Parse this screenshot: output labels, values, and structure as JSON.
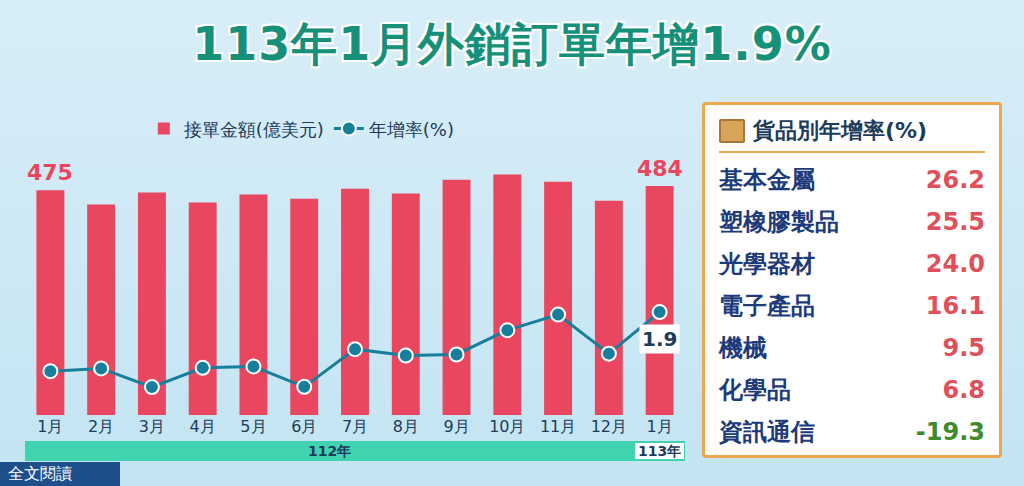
{
  "title": "113年1月外銷訂單年增1.9%",
  "chart_data": {
    "type": "bar",
    "categories": [
      "1月",
      "2月",
      "3月",
      "4月",
      "5月",
      "6月",
      "7月",
      "8月",
      "9月",
      "10月",
      "11月",
      "12月",
      "1月"
    ],
    "x_groups": [
      {
        "label": "112年",
        "count": 12
      },
      {
        "label": "113年",
        "count": 1
      }
    ],
    "series": [
      {
        "name": "接單金額(億美元)",
        "type": "bar",
        "color": "#e8475f",
        "values": [
          475,
          445,
          470,
          449,
          466,
          457,
          478,
          468,
          497,
          508,
          493,
          453,
          484
        ],
        "value_labels": [
          "475",
          null,
          null,
          null,
          null,
          null,
          null,
          null,
          null,
          null,
          null,
          null,
          "484"
        ]
      },
      {
        "name": "年增率(%)",
        "type": "line",
        "axis": "y2",
        "color": "#177e9c",
        "marker": "circle",
        "values": [
          -19.3,
          -18.3,
          -25.0,
          -18.1,
          -17.6,
          -24.9,
          -11.4,
          -13.7,
          -13.3,
          -4.6,
          1.0,
          -13.0,
          1.9
        ],
        "value_labels": [
          null,
          null,
          null,
          null,
          null,
          null,
          null,
          null,
          null,
          null,
          null,
          null,
          "1.9"
        ]
      }
    ],
    "ylim": [
      0,
      560
    ],
    "y2lim": [
      -35,
      60
    ],
    "tick_labels": "x",
    "grid": false,
    "legend": "top"
  },
  "side_table": {
    "title": "貨品別年增率(%)",
    "rows": [
      {
        "name": "基本金屬",
        "value": "26.2"
      },
      {
        "name": "塑橡膠製品",
        "value": "25.5"
      },
      {
        "name": "光學器材",
        "value": "24.0"
      },
      {
        "name": "電子產品",
        "value": "16.1"
      },
      {
        "name": "機械",
        "value": "9.5"
      },
      {
        "name": "化學品",
        "value": "6.8"
      },
      {
        "name": "資訊通信",
        "value": "-19.3"
      }
    ]
  },
  "footer_link": "全文閱讀"
}
